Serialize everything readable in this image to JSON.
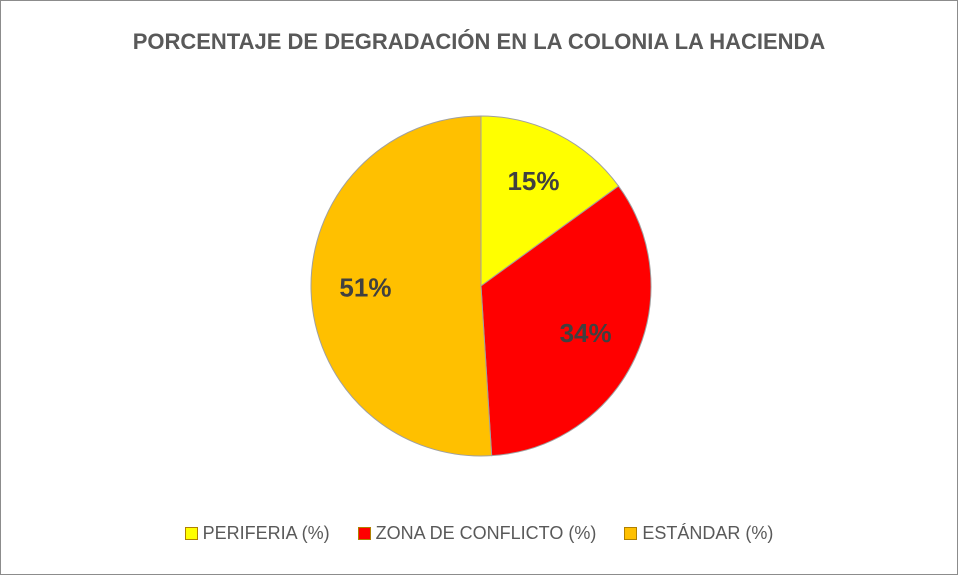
{
  "chart_data": {
    "type": "pie",
    "title": "PORCENTAJE DE DEGRADACIÓN EN LA COLONIA LA HACIENDA",
    "categories": [
      "PERIFERIA (%)",
      "ZONA DE CONFLICTO (%)",
      "ESTÁNDAR (%)"
    ],
    "values": [
      15,
      34,
      51
    ],
    "value_labels": [
      "15%",
      "34%",
      "51%"
    ],
    "colors": [
      "#ffff00",
      "#ff0000",
      "#ffc000"
    ],
    "legend": "bottom"
  }
}
